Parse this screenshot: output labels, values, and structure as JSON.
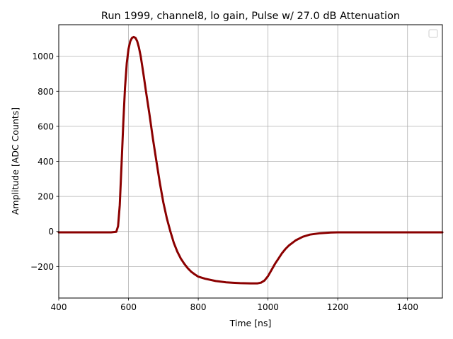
{
  "chart_data": {
    "type": "line",
    "title": "Run 1999, channel8, lo gain, Pulse w/ 27.0 dB Attenuation",
    "xlabel": "Time [ns]",
    "ylabel": "Amplitude [ADC Counts]",
    "xlim": [
      400,
      1500
    ],
    "ylim": [
      -380,
      1180
    ],
    "xticks": [
      400,
      600,
      800,
      1000,
      1200,
      1400
    ],
    "yticks": [
      -200,
      0,
      200,
      400,
      600,
      800,
      1000
    ],
    "grid": true,
    "legend": {
      "placement": "top-right",
      "entries": []
    },
    "series": [
      {
        "color": "#8b0000",
        "x": [
          400,
          450,
          500,
          550,
          565,
          570,
          575,
          580,
          585,
          590,
          595,
          600,
          605,
          610,
          615,
          620,
          625,
          630,
          635,
          640,
          645,
          650,
          660,
          670,
          680,
          690,
          700,
          710,
          720,
          730,
          740,
          750,
          760,
          770,
          780,
          790,
          800,
          820,
          850,
          880,
          900,
          920,
          950,
          970,
          980,
          990,
          1000,
          1010,
          1020,
          1030,
          1040,
          1050,
          1060,
          1080,
          1100,
          1120,
          1150,
          1180,
          1200,
          1250,
          1300,
          1400,
          1500
        ],
        "y": [
          -5,
          -5,
          -5,
          -5,
          -2,
          30,
          150,
          380,
          620,
          820,
          960,
          1040,
          1085,
          1105,
          1110,
          1105,
          1085,
          1050,
          1000,
          935,
          870,
          800,
          670,
          530,
          400,
          275,
          165,
          75,
          0,
          -65,
          -115,
          -155,
          -185,
          -210,
          -230,
          -245,
          -258,
          -270,
          -283,
          -290,
          -293,
          -295,
          -296,
          -296,
          -292,
          -280,
          -255,
          -220,
          -185,
          -155,
          -125,
          -100,
          -80,
          -50,
          -30,
          -18,
          -10,
          -6,
          -5,
          -5,
          -5,
          -5,
          -5
        ]
      }
    ]
  }
}
